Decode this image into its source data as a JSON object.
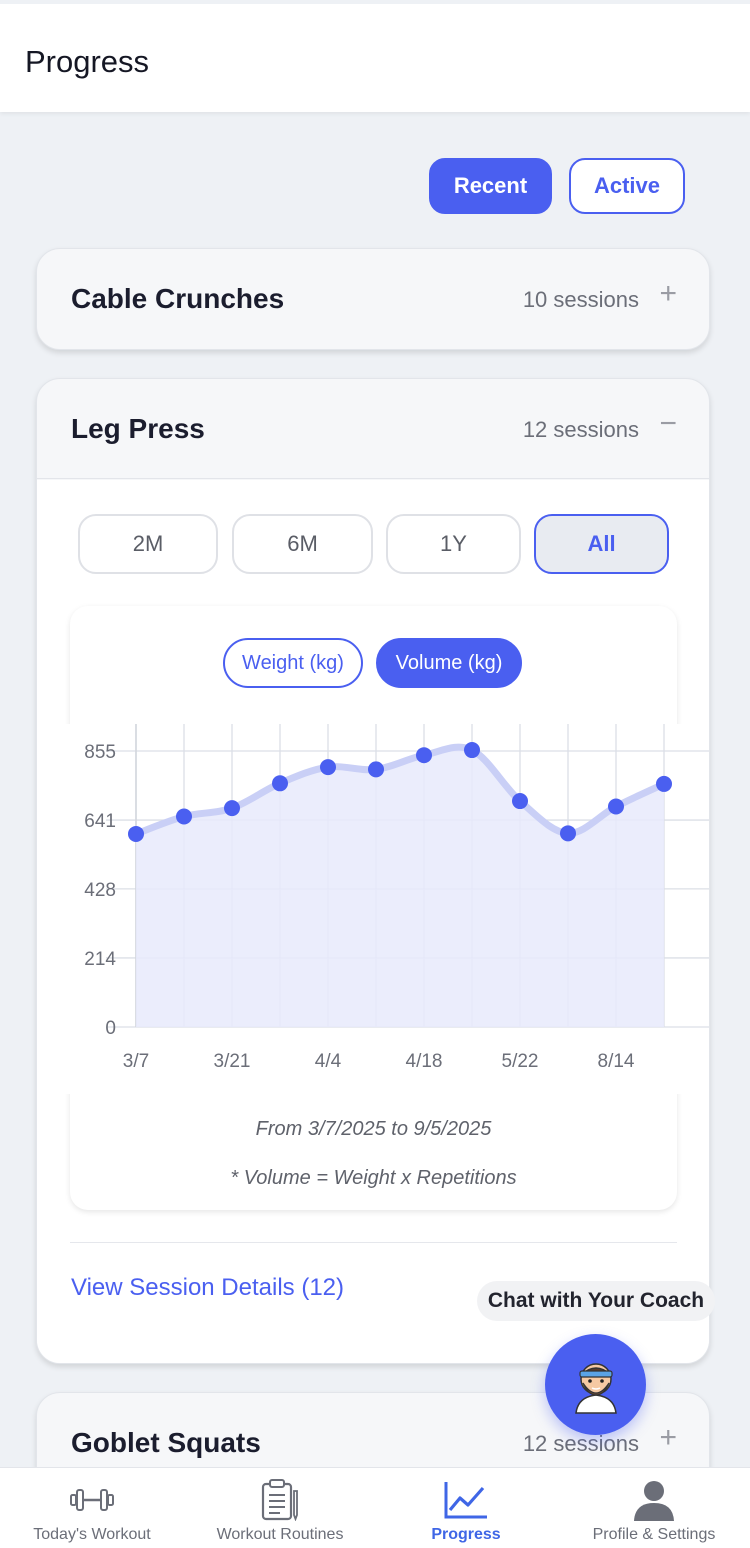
{
  "header": {
    "title": "Progress"
  },
  "filters": {
    "recent": "Recent",
    "active": "Active"
  },
  "exercises": [
    {
      "name": "Cable Crunches",
      "sessions": "10 sessions",
      "toggle": "+"
    },
    {
      "name": "Leg Press",
      "sessions": "12 sessions",
      "toggle": "−"
    },
    {
      "name": "Goblet Squats",
      "sessions": "12 sessions",
      "toggle": "+"
    }
  ],
  "ranges": [
    "2M",
    "6M",
    "1Y",
    "All"
  ],
  "selected_range": "All",
  "metrics": {
    "weight": "Weight (kg)",
    "volume": "Volume (kg)",
    "selected": "Volume (kg)"
  },
  "chart_data": {
    "type": "area",
    "series": [
      {
        "values": [
          598,
          652,
          678,
          755,
          805,
          798,
          842,
          858,
          700,
          600,
          683,
          753
        ]
      }
    ],
    "x_ticks": [
      "3/7",
      "3/21",
      "4/4",
      "4/18",
      "5/22",
      "8/14"
    ],
    "y_ticks": [
      "0",
      "214",
      "428",
      "641",
      "855"
    ],
    "ylim": [
      0,
      855
    ],
    "grid": true,
    "color": "#4a5ff0",
    "fill_color": "#e7eafb"
  },
  "date_range": "From 3/7/2025 to 9/5/2025",
  "footnote": "* Volume = Weight x Repetitions",
  "session_link": "View Session Details (12)",
  "coach": {
    "label": "Chat with Your Coach"
  },
  "tabs": [
    {
      "label": "Today's Workout",
      "icon": "dumbbell-icon"
    },
    {
      "label": "Workout Routines",
      "icon": "clipboard-icon"
    },
    {
      "label": "Progress",
      "icon": "chart-line-icon"
    },
    {
      "label": "Profile & Settings",
      "icon": "person-icon"
    }
  ],
  "colors": {
    "accent": "#4a5ff0",
    "background": "#eef1f5"
  }
}
